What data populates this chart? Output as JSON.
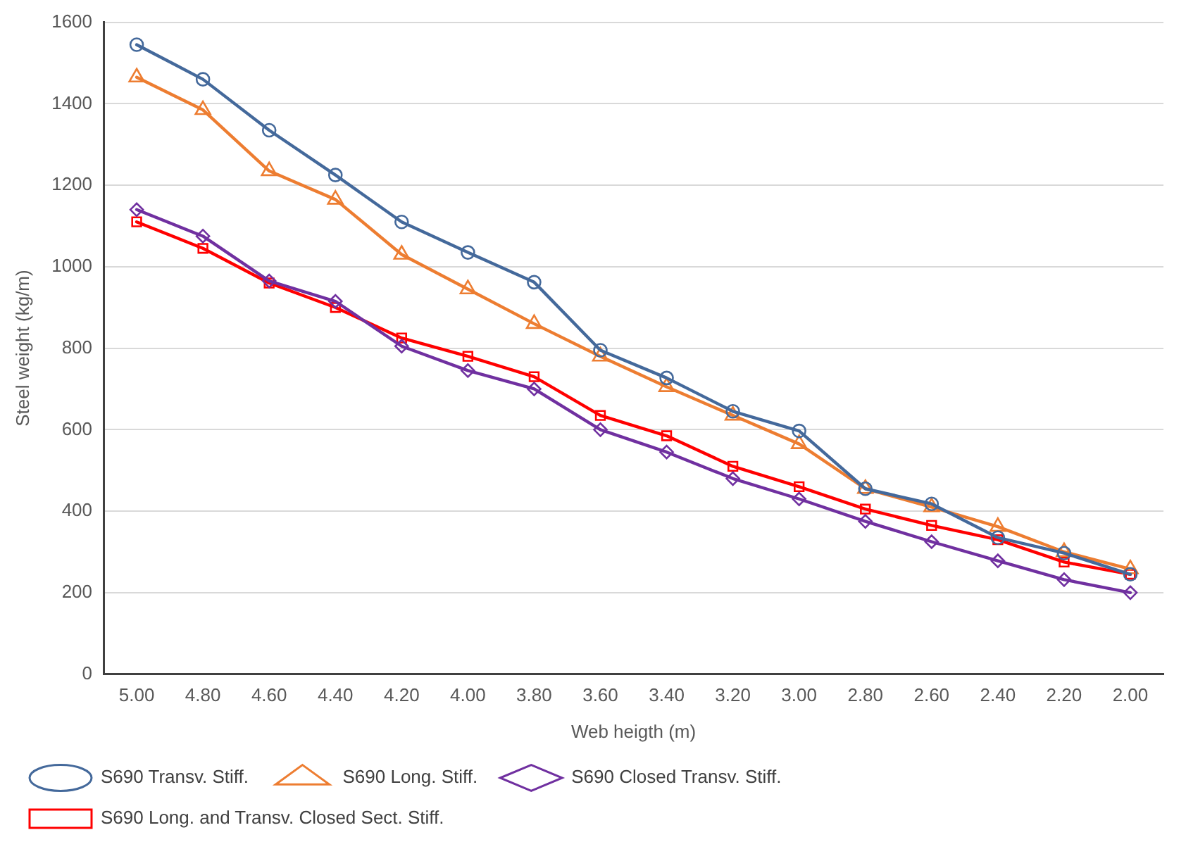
{
  "chart_data": {
    "type": "line",
    "xlabel": "Web heigth (m)",
    "ylabel": "Steel weight (kg/m)",
    "categories": [
      "5.00",
      "4.80",
      "4.60",
      "4.40",
      "4.20",
      "4.00",
      "3.80",
      "3.60",
      "3.40",
      "3.20",
      "3.00",
      "2.80",
      "2.60",
      "2.40",
      "2.20",
      "2.00"
    ],
    "series": [
      {
        "name": "S690 Transv. Stiff.",
        "color": "#44699b",
        "marker": "circle",
        "values": [
          1545,
          1460,
          1335,
          1225,
          1110,
          1035,
          962,
          795,
          727,
          645,
          597,
          455,
          418,
          335,
          297,
          245
        ]
      },
      {
        "name": "S690 Long. Stiff.",
        "color": "#ed7d31",
        "marker": "triangle",
        "values": [
          1465,
          1385,
          1235,
          1165,
          1030,
          945,
          860,
          780,
          705,
          635,
          565,
          455,
          410,
          362,
          300,
          258
        ]
      },
      {
        "name": "S690 Closed Transv. Stiff.",
        "color": "#7030a0",
        "marker": "diamond",
        "values": [
          1140,
          1075,
          965,
          915,
          805,
          745,
          700,
          600,
          545,
          480,
          430,
          375,
          325,
          278,
          232,
          200
        ]
      },
      {
        "name": "S690 Long. and Transv. Closed Sect. Stiff.",
        "color": "#ff0000",
        "marker": "square",
        "values": [
          1110,
          1045,
          960,
          900,
          825,
          780,
          730,
          635,
          585,
          510,
          460,
          405,
          365,
          330,
          275,
          245
        ]
      }
    ],
    "ylim": [
      0,
      1600
    ],
    "yticks": [
      0,
      200,
      400,
      600,
      800,
      1000,
      1200,
      1400,
      1600
    ],
    "grid": "y",
    "legend": "bottom",
    "line_style": "solid"
  }
}
